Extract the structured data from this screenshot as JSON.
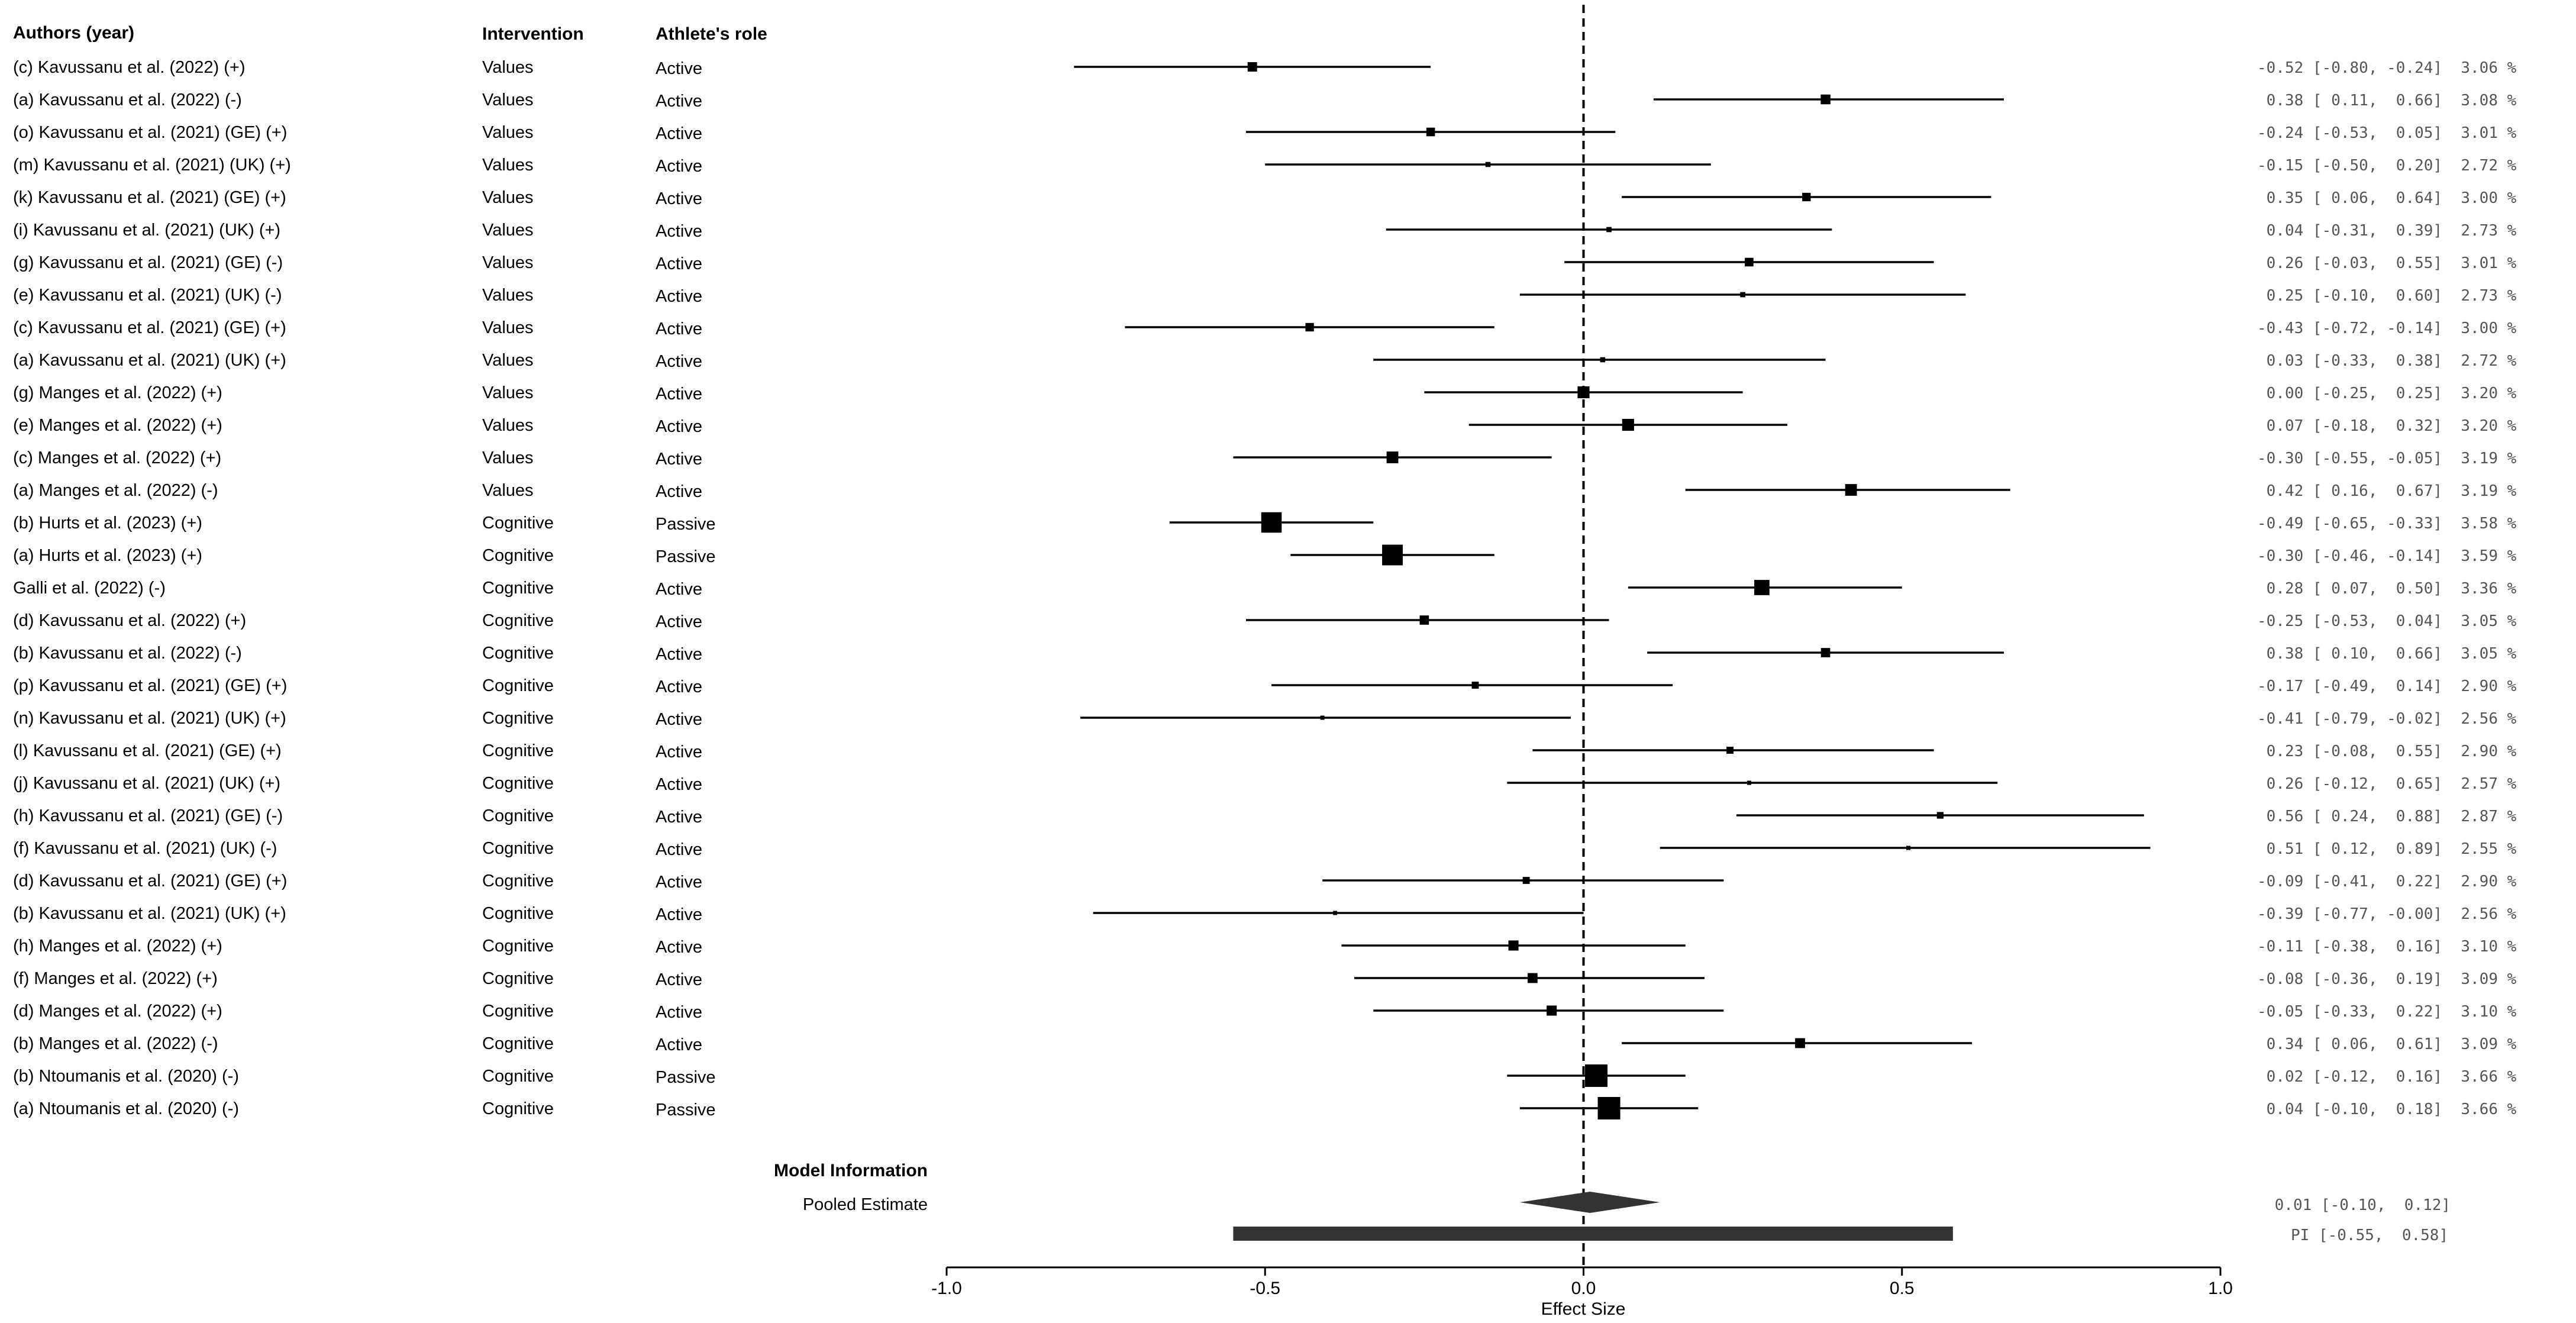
{
  "chart_data": {
    "type": "forest",
    "columns": {
      "authors": "Authors (year)",
      "intervention": "Intervention",
      "role": "Athlete's role"
    },
    "studies": [
      {
        "label": "(c) Kavussanu et al. (2022) (+)",
        "intervention": "Values",
        "role": "Active",
        "es": -0.52,
        "lo": -0.8,
        "hi": -0.24,
        "weight": 3.06,
        "text": "-0.52 [-0.80, -0.24]  3.06 %"
      },
      {
        "label": "(a) Kavussanu et al. (2022) (-)",
        "intervention": "Values",
        "role": "Active",
        "es": 0.38,
        "lo": 0.11,
        "hi": 0.66,
        "weight": 3.08,
        "text": " 0.38 [ 0.11,  0.66]  3.08 %"
      },
      {
        "label": "(o) Kavussanu et al. (2021) (GE) (+)",
        "intervention": "Values",
        "role": "Active",
        "es": -0.24,
        "lo": -0.53,
        "hi": 0.05,
        "weight": 3.01,
        "text": "-0.24 [-0.53,  0.05]  3.01 %"
      },
      {
        "label": "(m) Kavussanu et al. (2021) (UK) (+)",
        "intervention": "Values",
        "role": "Active",
        "es": -0.15,
        "lo": -0.5,
        "hi": 0.2,
        "weight": 2.72,
        "text": "-0.15 [-0.50,  0.20]  2.72 %"
      },
      {
        "label": "(k) Kavussanu et al. (2021) (GE) (+)",
        "intervention": "Values",
        "role": "Active",
        "es": 0.35,
        "lo": 0.06,
        "hi": 0.64,
        "weight": 3.0,
        "text": " 0.35 [ 0.06,  0.64]  3.00 %"
      },
      {
        "label": "(i) Kavussanu et al. (2021) (UK) (+)",
        "intervention": "Values",
        "role": "Active",
        "es": 0.04,
        "lo": -0.31,
        "hi": 0.39,
        "weight": 2.73,
        "text": " 0.04 [-0.31,  0.39]  2.73 %"
      },
      {
        "label": "(g) Kavussanu et al. (2021) (GE) (-)",
        "intervention": "Values",
        "role": "Active",
        "es": 0.26,
        "lo": -0.03,
        "hi": 0.55,
        "weight": 3.01,
        "text": " 0.26 [-0.03,  0.55]  3.01 %"
      },
      {
        "label": "(e) Kavussanu et al. (2021) (UK) (-)",
        "intervention": "Values",
        "role": "Active",
        "es": 0.25,
        "lo": -0.1,
        "hi": 0.6,
        "weight": 2.73,
        "text": " 0.25 [-0.10,  0.60]  2.73 %"
      },
      {
        "label": "(c) Kavussanu et al. (2021) (GE) (+)",
        "intervention": "Values",
        "role": "Active",
        "es": -0.43,
        "lo": -0.72,
        "hi": -0.14,
        "weight": 3.0,
        "text": "-0.43 [-0.72, -0.14]  3.00 %"
      },
      {
        "label": "(a) Kavussanu et al. (2021) (UK) (+)",
        "intervention": "Values",
        "role": "Active",
        "es": 0.03,
        "lo": -0.33,
        "hi": 0.38,
        "weight": 2.72,
        "text": " 0.03 [-0.33,  0.38]  2.72 %"
      },
      {
        "label": "(g) Manges et al. (2022) (+)",
        "intervention": "Values",
        "role": "Active",
        "es": 0.0,
        "lo": -0.25,
        "hi": 0.25,
        "weight": 3.2,
        "text": " 0.00 [-0.25,  0.25]  3.20 %"
      },
      {
        "label": "(e) Manges et al. (2022) (+)",
        "intervention": "Values",
        "role": "Active",
        "es": 0.07,
        "lo": -0.18,
        "hi": 0.32,
        "weight": 3.2,
        "text": " 0.07 [-0.18,  0.32]  3.20 %"
      },
      {
        "label": "(c) Manges et al. (2022) (+)",
        "intervention": "Values",
        "role": "Active",
        "es": -0.3,
        "lo": -0.55,
        "hi": -0.05,
        "weight": 3.19,
        "text": "-0.30 [-0.55, -0.05]  3.19 %"
      },
      {
        "label": "(a) Manges et al. (2022) (-)",
        "intervention": "Values",
        "role": "Active",
        "es": 0.42,
        "lo": 0.16,
        "hi": 0.67,
        "weight": 3.19,
        "text": " 0.42 [ 0.16,  0.67]  3.19 %"
      },
      {
        "label": "(b) Hurts et al. (2023) (+)",
        "intervention": "Cognitive",
        "role": "Passive",
        "es": -0.49,
        "lo": -0.65,
        "hi": -0.33,
        "weight": 3.58,
        "text": "-0.49 [-0.65, -0.33]  3.58 %"
      },
      {
        "label": "(a) Hurts et al. (2023) (+)",
        "intervention": "Cognitive",
        "role": "Passive",
        "es": -0.3,
        "lo": -0.46,
        "hi": -0.14,
        "weight": 3.59,
        "text": "-0.30 [-0.46, -0.14]  3.59 %"
      },
      {
        "label": "Galli et al. (2022) (-)",
        "intervention": "Cognitive",
        "role": "Active",
        "es": 0.28,
        "lo": 0.07,
        "hi": 0.5,
        "weight": 3.36,
        "text": " 0.28 [ 0.07,  0.50]  3.36 %"
      },
      {
        "label": "(d) Kavussanu et al. (2022) (+)",
        "intervention": "Cognitive",
        "role": "Active",
        "es": -0.25,
        "lo": -0.53,
        "hi": 0.04,
        "weight": 3.05,
        "text": "-0.25 [-0.53,  0.04]  3.05 %"
      },
      {
        "label": "(b) Kavussanu et al. (2022) (-)",
        "intervention": "Cognitive",
        "role": "Active",
        "es": 0.38,
        "lo": 0.1,
        "hi": 0.66,
        "weight": 3.05,
        "text": " 0.38 [ 0.10,  0.66]  3.05 %"
      },
      {
        "label": "(p) Kavussanu et al. (2021) (GE) (+)",
        "intervention": "Cognitive",
        "role": "Active",
        "es": -0.17,
        "lo": -0.49,
        "hi": 0.14,
        "weight": 2.9,
        "text": "-0.17 [-0.49,  0.14]  2.90 %"
      },
      {
        "label": "(n) Kavussanu et al. (2021) (UK) (+)",
        "intervention": "Cognitive",
        "role": "Active",
        "es": -0.41,
        "lo": -0.79,
        "hi": -0.02,
        "weight": 2.56,
        "text": "-0.41 [-0.79, -0.02]  2.56 %"
      },
      {
        "label": "(l) Kavussanu et al. (2021) (GE) (+)",
        "intervention": "Cognitive",
        "role": "Active",
        "es": 0.23,
        "lo": -0.08,
        "hi": 0.55,
        "weight": 2.9,
        "text": " 0.23 [-0.08,  0.55]  2.90 %"
      },
      {
        "label": "(j) Kavussanu et al. (2021) (UK) (+)",
        "intervention": "Cognitive",
        "role": "Active",
        "es": 0.26,
        "lo": -0.12,
        "hi": 0.65,
        "weight": 2.57,
        "text": " 0.26 [-0.12,  0.65]  2.57 %"
      },
      {
        "label": "(h) Kavussanu et al. (2021) (GE) (-)",
        "intervention": "Cognitive",
        "role": "Active",
        "es": 0.56,
        "lo": 0.24,
        "hi": 0.88,
        "weight": 2.87,
        "text": " 0.56 [ 0.24,  0.88]  2.87 %"
      },
      {
        "label": "(f) Kavussanu et al. (2021) (UK) (-)",
        "intervention": "Cognitive",
        "role": "Active",
        "es": 0.51,
        "lo": 0.12,
        "hi": 0.89,
        "weight": 2.55,
        "text": " 0.51 [ 0.12,  0.89]  2.55 %"
      },
      {
        "label": "(d) Kavussanu et al. (2021) (GE) (+)",
        "intervention": "Cognitive",
        "role": "Active",
        "es": -0.09,
        "lo": -0.41,
        "hi": 0.22,
        "weight": 2.9,
        "text": "-0.09 [-0.41,  0.22]  2.90 %"
      },
      {
        "label": "(b) Kavussanu et al. (2021) (UK) (+)",
        "intervention": "Cognitive",
        "role": "Active",
        "es": -0.39,
        "lo": -0.77,
        "hi": -0.0,
        "weight": 2.56,
        "text": "-0.39 [-0.77, -0.00]  2.56 %"
      },
      {
        "label": "(h) Manges et al. (2022) (+)",
        "intervention": "Cognitive",
        "role": "Active",
        "es": -0.11,
        "lo": -0.38,
        "hi": 0.16,
        "weight": 3.1,
        "text": "-0.11 [-0.38,  0.16]  3.10 %"
      },
      {
        "label": "(f) Manges et al. (2022) (+)",
        "intervention": "Cognitive",
        "role": "Active",
        "es": -0.08,
        "lo": -0.36,
        "hi": 0.19,
        "weight": 3.09,
        "text": "-0.08 [-0.36,  0.19]  3.09 %"
      },
      {
        "label": "(d) Manges et al. (2022) (+)",
        "intervention": "Cognitive",
        "role": "Active",
        "es": -0.05,
        "lo": -0.33,
        "hi": 0.22,
        "weight": 3.1,
        "text": "-0.05 [-0.33,  0.22]  3.10 %"
      },
      {
        "label": "(b) Manges et al. (2022) (-)",
        "intervention": "Cognitive",
        "role": "Active",
        "es": 0.34,
        "lo": 0.06,
        "hi": 0.61,
        "weight": 3.09,
        "text": " 0.34 [ 0.06,  0.61]  3.09 %"
      },
      {
        "label": "(b) Ntoumanis et al. (2020) (-)",
        "intervention": "Cognitive",
        "role": "Passive",
        "es": 0.02,
        "lo": -0.12,
        "hi": 0.16,
        "weight": 3.66,
        "text": " 0.02 [-0.12,  0.16]  3.66 %"
      },
      {
        "label": "(a) Ntoumanis et al. (2020) (-)",
        "intervention": "Cognitive",
        "role": "Passive",
        "es": 0.04,
        "lo": -0.1,
        "hi": 0.18,
        "weight": 3.66,
        "text": " 0.04 [-0.10,  0.18]  3.66 %"
      }
    ],
    "model": {
      "heading": "Model Information",
      "pooled_label": "Pooled Estimate",
      "pooled": {
        "es": 0.01,
        "lo": -0.1,
        "hi": 0.12,
        "text": " 0.01 [-0.10,  0.12]"
      },
      "pi": {
        "lo": -0.55,
        "hi": 0.58,
        "text": "PI [-0.55,  0.58]"
      }
    },
    "xlabel": "Effect Size",
    "xlim": [
      -1.0,
      1.0
    ],
    "xticks": [
      -1.0,
      -0.5,
      0.0,
      0.5,
      1.0
    ],
    "xtick_labels": [
      "-1.0",
      "-0.5",
      "0.0",
      "0.5",
      "1.0"
    ],
    "reference_line": 0.0
  }
}
